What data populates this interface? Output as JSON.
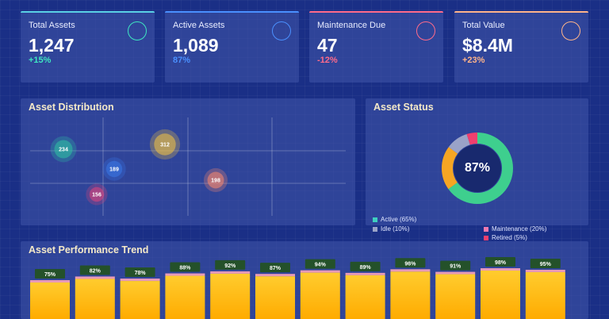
{
  "kpis": [
    {
      "label": "Total Assets",
      "value": "1,247",
      "change": "+15%",
      "color": "#3ee6c1"
    },
    {
      "label": "Active Assets",
      "value": "1,089",
      "change": "87%",
      "color": "#4a90ff"
    },
    {
      "label": "Maintenance Due",
      "value": "47",
      "change": "-12%",
      "color": "#ff6b8a"
    },
    {
      "label": "Total Value",
      "value": "$8.4M",
      "change": "+23%",
      "color": "#ffb48a"
    }
  ],
  "distribution": {
    "title": "Asset Distribution",
    "chart_data": {
      "type": "scatter",
      "points": [
        {
          "value": 234,
          "color": "#2fc3a4"
        },
        {
          "value": 189,
          "color": "#3a78e8"
        },
        {
          "value": 312,
          "color": "#f5c542"
        },
        {
          "value": 156,
          "color": "#e0457b"
        },
        {
          "value": 198,
          "color": "#ff8a6b"
        }
      ]
    }
  },
  "status": {
    "title": "Asset Status",
    "center_value": "87%",
    "chart_data": {
      "type": "pie",
      "slices": [
        {
          "label": "Active (65%)",
          "value": 65,
          "color": "#3ecf8e"
        },
        {
          "label": "Maintenance (20%)",
          "value": 20,
          "color": "#f6a623"
        },
        {
          "label": "Idle (10%)",
          "value": 10,
          "color": "#9aa3c8"
        },
        {
          "label": "Retired (5%)",
          "value": 5,
          "color": "#ef3f6e"
        }
      ]
    },
    "legend": [
      {
        "label": "Active (65%)",
        "color": "#3ecfc0"
      },
      {
        "label": "Idle (10%)",
        "color": "#9aa3c8"
      },
      {
        "label": "Maintenance (20%)",
        "color": "#f07ab0"
      },
      {
        "label": "Retired (5%)",
        "color": "#ef3f6e"
      }
    ]
  },
  "trend": {
    "title": "Asset Performance Trend",
    "chart_data": {
      "type": "bar",
      "values": [
        75,
        82,
        78,
        88,
        92,
        87,
        94,
        89,
        96,
        91,
        98,
        95
      ],
      "labels": [
        "75%",
        "82%",
        "78%",
        "88%",
        "92%",
        "87%",
        "94%",
        "89%",
        "96%",
        "91%",
        "98%",
        "95%"
      ]
    }
  }
}
